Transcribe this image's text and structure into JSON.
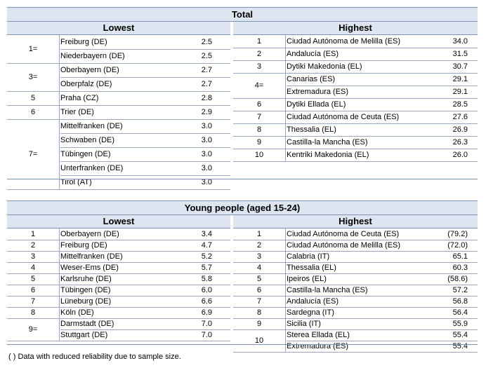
{
  "total": {
    "title": "Total",
    "lowest_label": "Lowest",
    "highest_label": "Highest",
    "lowest": [
      {
        "rank": "1=",
        "items": [
          {
            "region": "Freiburg (DE)",
            "value": "2.5"
          },
          {
            "region": "Niederbayern (DE)",
            "value": "2.5"
          }
        ]
      },
      {
        "rank": "3=",
        "items": [
          {
            "region": "Oberbayern (DE)",
            "value": "2.7"
          },
          {
            "region": "Oberpfalz (DE)",
            "value": "2.7"
          }
        ]
      },
      {
        "rank": "5",
        "items": [
          {
            "region": "Praha (CZ)",
            "value": "2.8"
          }
        ]
      },
      {
        "rank": "6",
        "items": [
          {
            "region": "Trier (DE)",
            "value": "2.9"
          }
        ]
      },
      {
        "rank": "7=",
        "items": [
          {
            "region": "Mittelfranken (DE)",
            "value": "3.0"
          },
          {
            "region": "Schwaben (DE)",
            "value": "3.0"
          },
          {
            "region": "Tübingen (DE)",
            "value": "3.0"
          },
          {
            "region": "Unterfranken (DE)",
            "value": "3.0"
          },
          {
            "region": "Tirol (AT)",
            "value": "3.0"
          }
        ]
      }
    ],
    "highest": [
      {
        "rank": "1",
        "items": [
          {
            "region": "Ciudad Autónoma de Melilla (ES)",
            "value": "34.0"
          }
        ]
      },
      {
        "rank": "2",
        "items": [
          {
            "region": "Andalucía (ES)",
            "value": "31.5"
          }
        ]
      },
      {
        "rank": "3",
        "items": [
          {
            "region": "Dytiki Makedonia (EL)",
            "value": "30.7"
          }
        ]
      },
      {
        "rank": "4=",
        "items": [
          {
            "region": "Canarias (ES)",
            "value": "29.1"
          },
          {
            "region": "Extremadura (ES)",
            "value": "29.1"
          }
        ]
      },
      {
        "rank": "6",
        "items": [
          {
            "region": "Dytiki Ellada (EL)",
            "value": "28.5"
          }
        ]
      },
      {
        "rank": "7",
        "items": [
          {
            "region": "Ciudad Autónoma de Ceuta (ES)",
            "value": "27.6"
          }
        ]
      },
      {
        "rank": "8",
        "items": [
          {
            "region": "Thessalia (EL)",
            "value": "26.9"
          }
        ]
      },
      {
        "rank": "9",
        "items": [
          {
            "region": "Castilla-la Mancha (ES)",
            "value": "26.3"
          }
        ]
      },
      {
        "rank": "10",
        "items": [
          {
            "region": "Kentriki Makedonia (EL)",
            "value": "26.0"
          }
        ]
      }
    ]
  },
  "young": {
    "title": "Young people (aged 15-24)",
    "lowest_label": "Lowest",
    "highest_label": "Highest",
    "lowest": [
      {
        "rank": "1",
        "items": [
          {
            "region": "Oberbayern (DE)",
            "value": "3.4"
          }
        ]
      },
      {
        "rank": "2",
        "items": [
          {
            "region": "Freiburg (DE)",
            "value": "4.7"
          }
        ]
      },
      {
        "rank": "3",
        "items": [
          {
            "region": "Mittelfranken (DE)",
            "value": "5.2"
          }
        ]
      },
      {
        "rank": "4",
        "items": [
          {
            "region": "Weser-Ems (DE)",
            "value": "5.7"
          }
        ]
      },
      {
        "rank": "5",
        "items": [
          {
            "region": "Karlsruhe (DE)",
            "value": "5.8"
          }
        ]
      },
      {
        "rank": "6",
        "items": [
          {
            "region": "Tübingen (DE)",
            "value": "6.0"
          }
        ]
      },
      {
        "rank": "7",
        "items": [
          {
            "region": "Lüneburg (DE)",
            "value": "6.6"
          }
        ]
      },
      {
        "rank": "8",
        "items": [
          {
            "region": "Köln (DE)",
            "value": "6.9"
          }
        ]
      },
      {
        "rank": "9=",
        "items": [
          {
            "region": "Darmstadt (DE)",
            "value": "7.0"
          },
          {
            "region": "Stuttgart (DE)",
            "value": "7.0"
          }
        ]
      }
    ],
    "highest": [
      {
        "rank": "1",
        "items": [
          {
            "region": "Ciudad Autónoma de Ceuta (ES)",
            "value": "(79.2)"
          }
        ]
      },
      {
        "rank": "2",
        "items": [
          {
            "region": "Ciudad Autónoma de Melilla (ES)",
            "value": "(72.0)"
          }
        ]
      },
      {
        "rank": "3",
        "items": [
          {
            "region": "Calabria (IT)",
            "value": "65.1"
          }
        ]
      },
      {
        "rank": "4",
        "items": [
          {
            "region": "Thessalia (EL)",
            "value": "60.3"
          }
        ]
      },
      {
        "rank": "5",
        "items": [
          {
            "region": "Ipeiros (EL)",
            "value": "(58.6)"
          }
        ]
      },
      {
        "rank": "6",
        "items": [
          {
            "region": "Castilla-la Mancha (ES)",
            "value": "57.2"
          }
        ]
      },
      {
        "rank": "7",
        "items": [
          {
            "region": "Andalucía (ES)",
            "value": "56.8"
          }
        ]
      },
      {
        "rank": "8",
        "items": [
          {
            "region": "Sardegna (IT)",
            "value": "56.4"
          }
        ]
      },
      {
        "rank": "9",
        "items": [
          {
            "region": "Sicilia (IT)",
            "value": "55.9"
          }
        ]
      },
      {
        "rank": "10",
        "items": [
          {
            "region": "Sterea Ellada (EL)",
            "value": "55.4"
          },
          {
            "region": "Extremadura (ES)",
            "value": "55.4"
          }
        ]
      }
    ]
  },
  "footnote": "( ) Data with reduced reliability due to sample size."
}
